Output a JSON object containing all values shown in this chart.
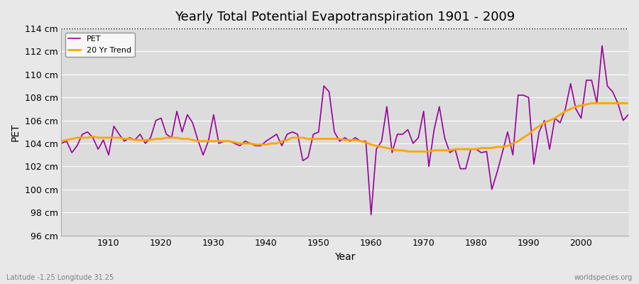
{
  "title": "Yearly Total Potential Evapotranspiration 1901 - 2009",
  "xlabel": "Year",
  "ylabel": "PET",
  "years": [
    1901,
    1902,
    1903,
    1904,
    1905,
    1906,
    1907,
    1908,
    1909,
    1910,
    1911,
    1912,
    1913,
    1914,
    1915,
    1916,
    1917,
    1918,
    1919,
    1920,
    1921,
    1922,
    1923,
    1924,
    1925,
    1926,
    1927,
    1928,
    1929,
    1930,
    1931,
    1932,
    1933,
    1934,
    1935,
    1936,
    1937,
    1938,
    1939,
    1940,
    1941,
    1942,
    1943,
    1944,
    1945,
    1946,
    1947,
    1948,
    1949,
    1950,
    1951,
    1952,
    1953,
    1954,
    1955,
    1956,
    1957,
    1958,
    1959,
    1960,
    1961,
    1962,
    1963,
    1964,
    1965,
    1966,
    1967,
    1968,
    1969,
    1970,
    1971,
    1972,
    1973,
    1974,
    1975,
    1976,
    1977,
    1978,
    1979,
    1980,
    1981,
    1982,
    1983,
    1984,
    1985,
    1986,
    1987,
    1988,
    1989,
    1990,
    1991,
    1992,
    1993,
    1994,
    1995,
    1996,
    1997,
    1998,
    1999,
    2000,
    2001,
    2002,
    2003,
    2004,
    2005,
    2006,
    2007,
    2008,
    2009
  ],
  "pet": [
    104.0,
    104.2,
    103.2,
    103.8,
    104.8,
    105.0,
    104.5,
    103.5,
    104.3,
    103.0,
    105.5,
    104.8,
    104.2,
    104.5,
    104.3,
    104.8,
    104.0,
    104.5,
    106.0,
    106.2,
    104.8,
    104.5,
    106.8,
    105.0,
    106.5,
    105.8,
    104.3,
    103.0,
    104.2,
    106.5,
    104.0,
    104.2,
    104.2,
    104.0,
    103.8,
    104.2,
    104.0,
    103.8,
    103.8,
    104.2,
    104.5,
    104.8,
    103.8,
    104.8,
    105.0,
    104.8,
    102.5,
    102.8,
    104.8,
    105.0,
    109.0,
    108.5,
    105.0,
    104.2,
    104.5,
    104.2,
    104.5,
    104.2,
    104.2,
    97.8,
    103.5,
    104.2,
    107.2,
    103.2,
    104.8,
    104.8,
    105.2,
    104.0,
    104.5,
    106.8,
    102.0,
    105.2,
    107.2,
    104.5,
    103.2,
    103.5,
    101.8,
    101.8,
    103.5,
    103.5,
    103.2,
    103.3,
    100.0,
    101.5,
    103.2,
    105.0,
    103.0,
    108.2,
    108.2,
    108.0,
    102.2,
    105.0,
    106.0,
    103.5,
    106.2,
    105.8,
    107.0,
    109.2,
    107.0,
    106.2,
    109.5,
    109.5,
    107.5,
    112.5,
    109.0,
    108.5,
    107.5,
    106.0,
    106.5
  ],
  "trend": [
    104.2,
    104.3,
    104.4,
    104.5,
    104.5,
    104.5,
    104.6,
    104.5,
    104.5,
    104.5,
    104.5,
    104.5,
    104.4,
    104.4,
    104.3,
    104.3,
    104.3,
    104.3,
    104.4,
    104.4,
    104.5,
    104.5,
    104.5,
    104.4,
    104.4,
    104.3,
    104.2,
    104.2,
    104.2,
    104.2,
    104.2,
    104.2,
    104.2,
    104.1,
    104.0,
    104.0,
    104.0,
    103.9,
    103.9,
    103.9,
    104.0,
    104.0,
    104.2,
    104.3,
    104.5,
    104.5,
    104.5,
    104.4,
    104.4,
    104.4,
    104.4,
    104.4,
    104.4,
    104.4,
    104.3,
    104.3,
    104.3,
    104.2,
    104.1,
    103.9,
    103.8,
    103.7,
    103.6,
    103.5,
    103.4,
    103.4,
    103.3,
    103.3,
    103.3,
    103.3,
    103.3,
    103.4,
    103.4,
    103.4,
    103.4,
    103.5,
    103.5,
    103.5,
    103.5,
    103.5,
    103.6,
    103.6,
    103.6,
    103.7,
    103.7,
    103.8,
    104.0,
    104.2,
    104.5,
    104.8,
    105.2,
    105.5,
    105.8,
    106.0,
    106.2,
    106.5,
    106.8,
    107.0,
    107.2,
    107.3,
    107.4,
    107.5,
    107.5,
    107.5,
    107.5,
    107.5,
    107.5,
    107.5,
    107.5
  ],
  "pet_color": "#990099",
  "trend_color": "#FFA500",
  "background_color": "#e8e8e8",
  "plot_bg_color": "#dcdcdc",
  "grid_color": "#ffffff",
  "ylim": [
    96,
    114
  ],
  "yticks": [
    96,
    98,
    100,
    102,
    104,
    106,
    108,
    110,
    112,
    114
  ],
  "ytick_labels": [
    "96 cm",
    "98 cm",
    "100 cm",
    "102 cm",
    "104 cm",
    "106 cm",
    "108 cm",
    "110 cm",
    "112 cm",
    "114 cm"
  ],
  "xlim": [
    1901,
    2009
  ],
  "xticks": [
    1910,
    1920,
    1930,
    1940,
    1950,
    1960,
    1970,
    1980,
    1990,
    2000
  ],
  "dotted_line_y": 114,
  "footer_left": "Latitude -1.25 Longitude 31.25",
  "footer_right": "worldspecies.org",
  "legend_labels": [
    "PET",
    "20 Yr Trend"
  ]
}
